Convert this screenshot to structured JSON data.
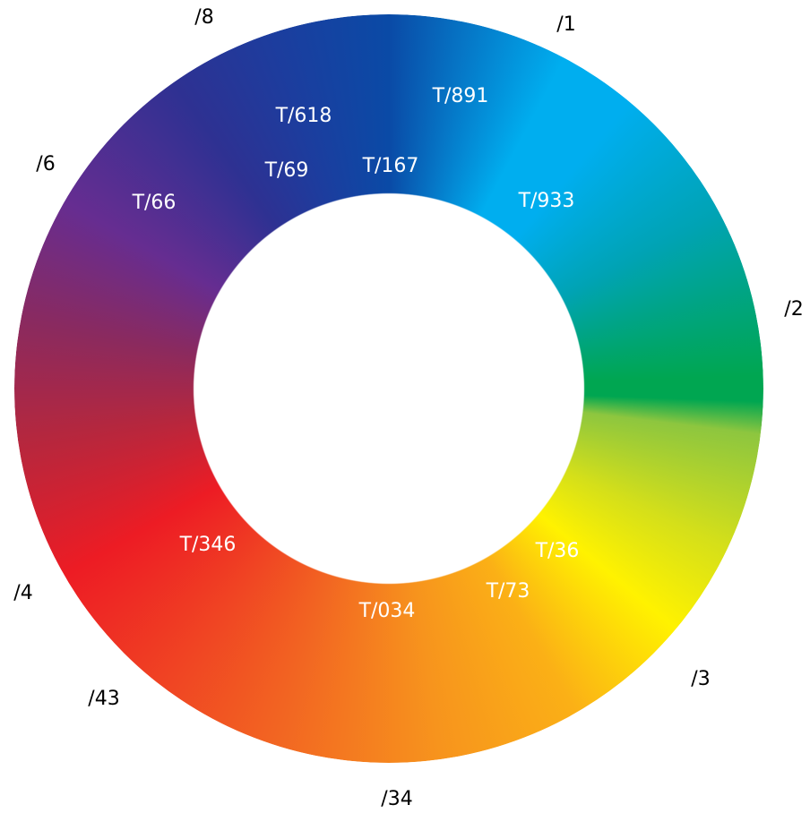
{
  "wheel": {
    "colors": {
      "blue_dark": "#0a4aa6",
      "cyan": "#00aeef",
      "green": "#00a651",
      "yellow": "#fff200",
      "orange": "#f7941d",
      "red": "#ed1c24",
      "purple": "#662d91",
      "indigo": "#2e3192"
    }
  },
  "outer_labels": {
    "l1": "/1",
    "l2": "/2",
    "l3": "/3",
    "l34": "/34",
    "l43": "/43",
    "l4": "/4",
    "l6": "/6",
    "l8": "/8"
  },
  "inner_labels": {
    "t891": "T/891",
    "t618": "T/618",
    "t167": "T/167",
    "t69": "T/69",
    "t933": "T/933",
    "t66": "T/66",
    "t36": "T/36",
    "t73": "T/73",
    "t034": "T/034",
    "t346": "T/346"
  }
}
